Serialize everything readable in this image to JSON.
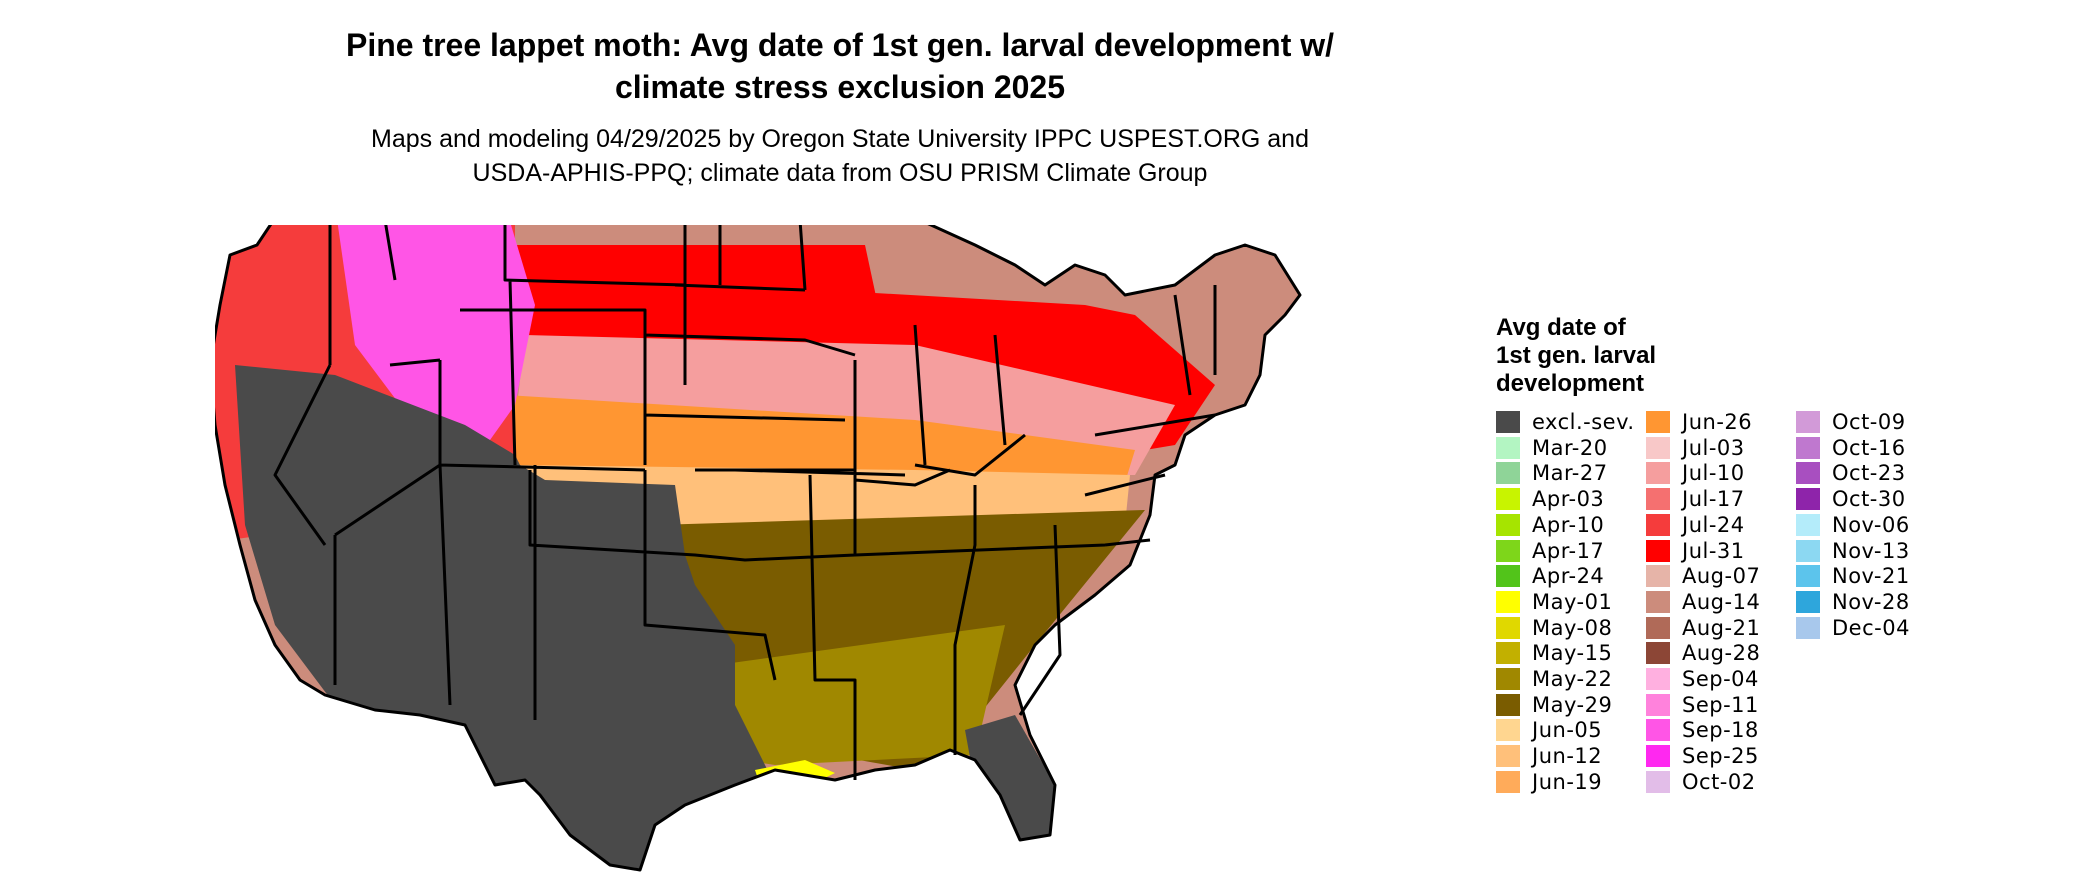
{
  "title_line1": "Pine tree lappet moth: Avg date of 1st gen. larval development w/",
  "title_line2": "climate stress exclusion 2025",
  "subtitle_line1": "Maps and modeling 04/29/2025 by Oregon State University IPPC USPEST.ORG and",
  "subtitle_line2": "USDA-APHIS-PPQ; climate data from OSU PRISM Climate Group",
  "legend": {
    "title": "Avg date of\n1st gen. larval\ndevelopment",
    "items": [
      {
        "label": "excl.-sev.",
        "color": "#4a4a4a"
      },
      {
        "label": "Mar-20",
        "color": "#b3f5c2"
      },
      {
        "label": "Mar-27",
        "color": "#8fd498"
      },
      {
        "label": "Apr-03",
        "color": "#c8f400"
      },
      {
        "label": "Apr-10",
        "color": "#a6e400"
      },
      {
        "label": "Apr-17",
        "color": "#7ed61a"
      },
      {
        "label": "Apr-24",
        "color": "#52c41a"
      },
      {
        "label": "May-01",
        "color": "#ffff00"
      },
      {
        "label": "May-08",
        "color": "#e0d800"
      },
      {
        "label": "May-15",
        "color": "#c2b000"
      },
      {
        "label": "May-22",
        "color": "#a08800"
      },
      {
        "label": "May-29",
        "color": "#7a5c00"
      },
      {
        "label": "Jun-05",
        "color": "#ffd690"
      },
      {
        "label": "Jun-12",
        "color": "#ffc07a"
      },
      {
        "label": "Jun-19",
        "color": "#ffab5a"
      },
      {
        "label": "Jun-26",
        "color": "#ff9632"
      },
      {
        "label": "Jul-03",
        "color": "#f8c8c8"
      },
      {
        "label": "Jul-10",
        "color": "#f59e9e"
      },
      {
        "label": "Jul-17",
        "color": "#f57070"
      },
      {
        "label": "Jul-24",
        "color": "#f53c3c"
      },
      {
        "label": "Jul-31",
        "color": "#ff0000"
      },
      {
        "label": "Aug-07",
        "color": "#e6b4a8"
      },
      {
        "label": "Aug-14",
        "color": "#cc8c7c"
      },
      {
        "label": "Aug-21",
        "color": "#b06a58"
      },
      {
        "label": "Aug-28",
        "color": "#8c4636"
      },
      {
        "label": "Sep-04",
        "color": "#ffb0e0"
      },
      {
        "label": "Sep-11",
        "color": "#ff82dc"
      },
      {
        "label": "Sep-18",
        "color": "#ff55e6"
      },
      {
        "label": "Sep-25",
        "color": "#ff28f0"
      },
      {
        "label": "Oct-02",
        "color": "#e2bde8"
      },
      {
        "label": "Oct-09",
        "color": "#d29ad8"
      },
      {
        "label": "Oct-16",
        "color": "#bf78cf"
      },
      {
        "label": "Oct-23",
        "color": "#a84fc0"
      },
      {
        "label": "Oct-30",
        "color": "#8e24aa"
      },
      {
        "label": "Nov-06",
        "color": "#b4ecfa"
      },
      {
        "label": "Nov-13",
        "color": "#8cd8f2"
      },
      {
        "label": "Nov-21",
        "color": "#5cc4ec"
      },
      {
        "label": "Nov-28",
        "color": "#2ea6dc"
      },
      {
        "label": "Dec-04",
        "color": "#a8c8ec"
      }
    ]
  },
  "map": {
    "zones": [
      {
        "name": "texas-sw-excluded",
        "legend_index": 0
      },
      {
        "name": "florida-excluded",
        "legend_index": 0
      },
      {
        "name": "gulf-coast-may",
        "legend_index": 10
      },
      {
        "name": "deep-south-may",
        "legend_index": 11
      },
      {
        "name": "tennessee-jun",
        "legend_index": 13
      },
      {
        "name": "central-jun",
        "legend_index": 15
      },
      {
        "name": "midwest-jul",
        "legend_index": 17
      },
      {
        "name": "plains-jul",
        "legend_index": 20
      },
      {
        "name": "northern-aug",
        "legend_index": 22
      },
      {
        "name": "mountains-sep",
        "legend_index": 27
      },
      {
        "name": "west-coast-jul",
        "legend_index": 19
      },
      {
        "name": "gulf-fringe-may01",
        "legend_index": 7
      }
    ]
  }
}
